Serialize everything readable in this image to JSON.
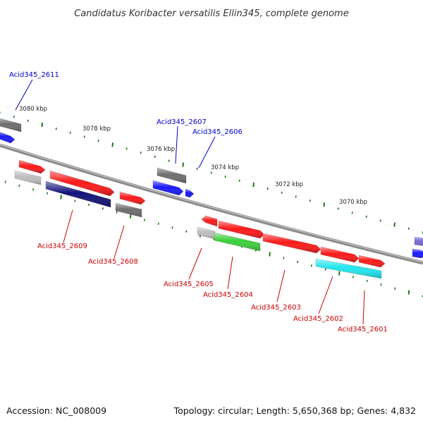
{
  "title": "Candidatus Koribacter versatilis Ellin345, complete genome",
  "footer": {
    "accession": "Accession: NC_008009",
    "summary": "Topology: circular; Length: 5,650,368 bp; Genes: 4,832"
  },
  "colors": {
    "backbone": "#8a8a8a",
    "tick": "#1a7a1a",
    "label_forward": "#0000cc",
    "label_reverse": "#cc0000",
    "red": "#ff1a1a",
    "blue": "#1a1aff",
    "navy": "#12127a",
    "gray": "#6e6e6e",
    "lightgray": "#bdbdbd",
    "green": "#3ccf3c",
    "cyan": "#22e6ee",
    "violet": "#7a6ad6"
  },
  "scale_labels": [
    "3080 kbp",
    "3078 kbp",
    "3076 kbp",
    "3074 kbp",
    "3072 kbp",
    "3070 kbp"
  ],
  "gene_labels": {
    "forward": [
      "Acid345_2611",
      "Acid345_2607",
      "Acid345_2606"
    ],
    "reverse": [
      "Acid345_2609",
      "Acid345_2608",
      "Acid345_2605",
      "Acid345_2604",
      "Acid345_2603",
      "Acid345_2602",
      "Acid345_2601"
    ]
  }
}
